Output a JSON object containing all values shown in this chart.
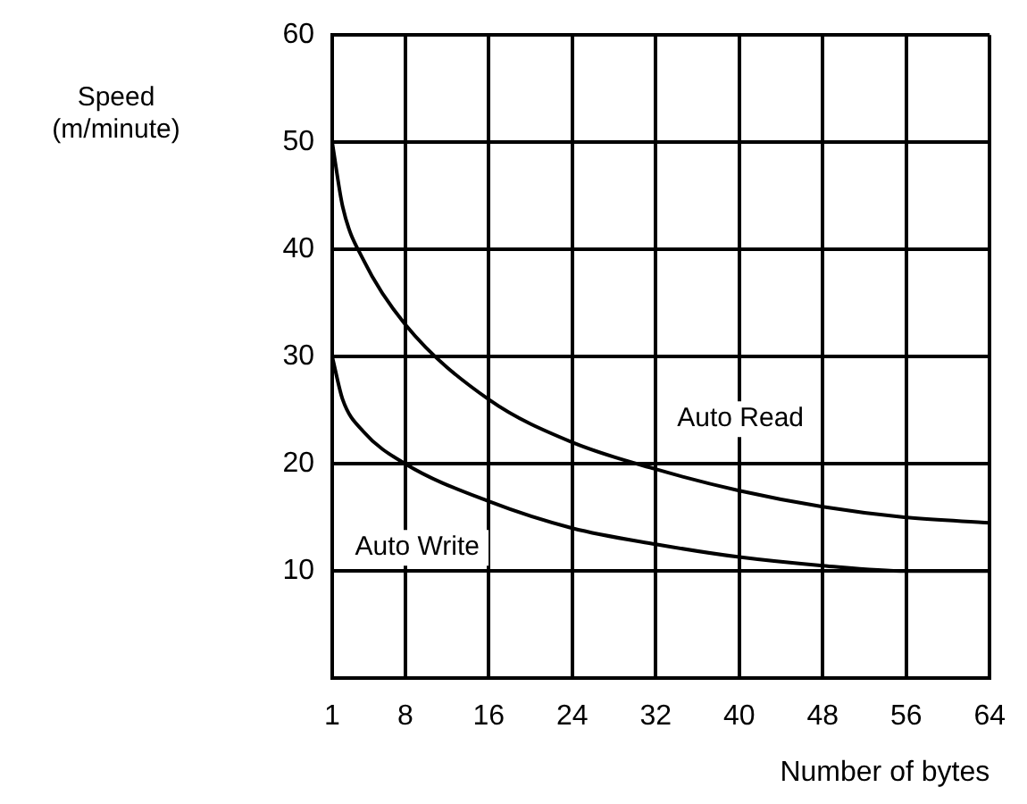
{
  "chart_data": {
    "type": "line",
    "xlabel": "Number of bytes",
    "ylabel": "Speed\n(m/minute)",
    "xlim": [
      1,
      64
    ],
    "xticks": [
      1,
      8,
      16,
      24,
      32,
      40,
      48,
      56,
      64
    ],
    "ylim": [
      0,
      60
    ],
    "yticks": [
      10,
      20,
      30,
      40,
      50,
      60
    ],
    "grid": true,
    "legend": false,
    "marker": "none",
    "line_style": "solid",
    "series": [
      {
        "name": "Auto Read",
        "color": "#000000",
        "x": [
          1,
          2,
          4,
          8,
          16,
          24,
          32,
          40,
          48,
          56,
          64
        ],
        "values": [
          50,
          44,
          39,
          33,
          26,
          22,
          19.5,
          17.5,
          16,
          15,
          14.5
        ]
      },
      {
        "name": "Auto Write",
        "color": "#000000",
        "x": [
          1,
          2,
          4,
          8,
          16,
          24,
          32,
          40,
          48,
          56,
          64
        ],
        "values": [
          30,
          26,
          23,
          20,
          16.5,
          14,
          12.5,
          11.3,
          10.5,
          10,
          10
        ]
      }
    ]
  }
}
